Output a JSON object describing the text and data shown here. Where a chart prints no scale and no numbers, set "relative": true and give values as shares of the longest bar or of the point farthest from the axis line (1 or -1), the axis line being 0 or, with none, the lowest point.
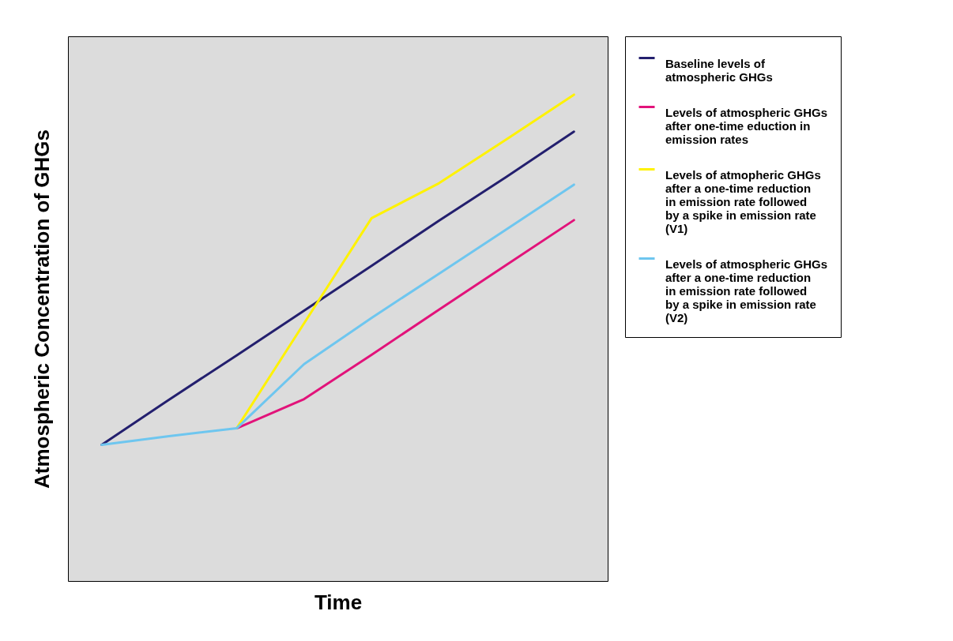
{
  "chart_data": {
    "type": "line",
    "relative": true,
    "xlabel": "Time",
    "ylabel": "Atmospheric Concentration of GHGs",
    "legend": "right",
    "grid": false,
    "categories": [
      null,
      null,
      null,
      null,
      null,
      null,
      null,
      null
    ],
    "series": [
      {
        "name": "Baseline levels of atmospheric GHGs",
        "color": "#231f6e",
        "values": [
          0.28,
          0.373,
          0.464,
          0.556,
          0.648,
          0.741,
          0.831,
          0.924
        ]
      },
      {
        "name": "Levels of atmospheric GHGs after one-time eduction in emission rates",
        "color": "#e2137a",
        "values": [
          null,
          null,
          0.314,
          0.374,
          0.465,
          0.558,
          0.65,
          0.742
        ]
      },
      {
        "name": "Levels of atmopheric GHGs after a one-time reduction in emission rate followed by a spike in emission rate (V1)",
        "color": "#fff200",
        "values": [
          null,
          null,
          0.314,
          0.53,
          0.746,
          0.818,
          0.908,
          1
        ]
      },
      {
        "name": "Levels of atmospheric GHGs after a one-time reduction in emission rate followed by a spike in emission rate (V2)",
        "color": "#6ec6ef",
        "values": [
          0.28,
          0.298,
          0.314,
          0.446,
          0.541,
          0.632,
          0.723,
          0.815
        ]
      }
    ]
  }
}
